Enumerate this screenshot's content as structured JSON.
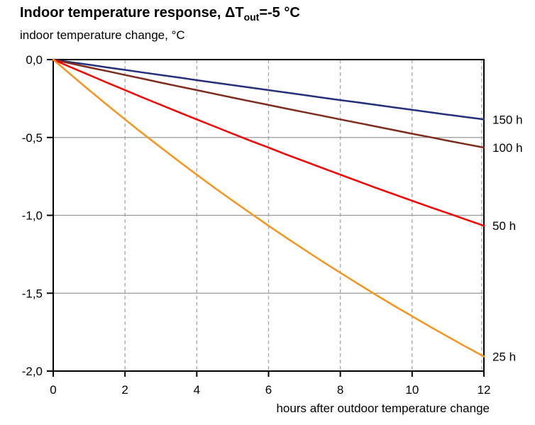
{
  "header": {
    "title_part1": "Indoor temperature response, ",
    "title_symbol": "ΔT",
    "title_subscript": "out",
    "title_part2": "=-5 °C",
    "y_axis_title": "indoor temperature change, °C"
  },
  "x_axis_label": "hours after outdoor temperature change",
  "chart_data": {
    "type": "line",
    "title": "Indoor temperature response, ΔT_out=-5 °C",
    "ylabel": "indoor temperature change, °C",
    "xlabel": "hours after outdoor temperature change",
    "xlim": [
      0,
      12
    ],
    "ylim": [
      -2.0,
      0.0
    ],
    "x_tick_values": [
      0,
      2,
      4,
      6,
      8,
      10,
      12
    ],
    "x_tick_labels": [
      "0",
      "2",
      "4",
      "6",
      "8",
      "10",
      "12"
    ],
    "y_tick_values": [
      0,
      -0.5,
      -1.0,
      -1.5,
      -2.0
    ],
    "y_tick_labels": [
      "0,0",
      "-0,5",
      "-1,0",
      "-1,5",
      "-2,0"
    ],
    "grid": {
      "horizontal_style": "solid",
      "horizontal_color": "#999999",
      "vertical_style": "dashed",
      "vertical_color": "#ababab"
    },
    "legend_position": "line-end-labels-right",
    "x": [
      0,
      0.5,
      1,
      1.5,
      2,
      2.5,
      3,
      3.5,
      4,
      4.5,
      5,
      5.5,
      6,
      6.5,
      7,
      7.5,
      8,
      8.5,
      9,
      9.5,
      10,
      10.5,
      11,
      11.5,
      12
    ],
    "series": [
      {
        "label": "150 h",
        "color": "#262f7d",
        "values": [
          0,
          -0.017,
          -0.033,
          -0.05,
          -0.066,
          -0.083,
          -0.099,
          -0.115,
          -0.132,
          -0.148,
          -0.164,
          -0.18,
          -0.196,
          -0.212,
          -0.228,
          -0.244,
          -0.26,
          -0.275,
          -0.291,
          -0.307,
          -0.322,
          -0.338,
          -0.354,
          -0.369,
          -0.384
        ]
      },
      {
        "label": "100 h",
        "color": "#7f2b1e",
        "values": [
          0,
          -0.025,
          -0.05,
          -0.074,
          -0.099,
          -0.123,
          -0.148,
          -0.172,
          -0.196,
          -0.22,
          -0.244,
          -0.268,
          -0.291,
          -0.315,
          -0.338,
          -0.361,
          -0.384,
          -0.407,
          -0.43,
          -0.453,
          -0.476,
          -0.498,
          -0.521,
          -0.543,
          -0.565
        ]
      },
      {
        "label": "50 h",
        "color": "#ff0000",
        "values": [
          0,
          -0.05,
          -0.099,
          -0.148,
          -0.196,
          -0.244,
          -0.291,
          -0.338,
          -0.384,
          -0.43,
          -0.476,
          -0.521,
          -0.565,
          -0.61,
          -0.653,
          -0.696,
          -0.739,
          -0.782,
          -0.824,
          -0.865,
          -0.906,
          -0.947,
          -0.987,
          -1.027,
          -1.067
        ]
      },
      {
        "label": "25 h",
        "color": "#f7941e",
        "values": [
          0,
          -0.099,
          -0.196,
          -0.291,
          -0.384,
          -0.476,
          -0.565,
          -0.653,
          -0.739,
          -0.824,
          -0.906,
          -0.987,
          -1.067,
          -1.145,
          -1.221,
          -1.296,
          -1.369,
          -1.441,
          -1.512,
          -1.581,
          -1.648,
          -1.715,
          -1.78,
          -1.844,
          -1.906
        ]
      }
    ]
  }
}
